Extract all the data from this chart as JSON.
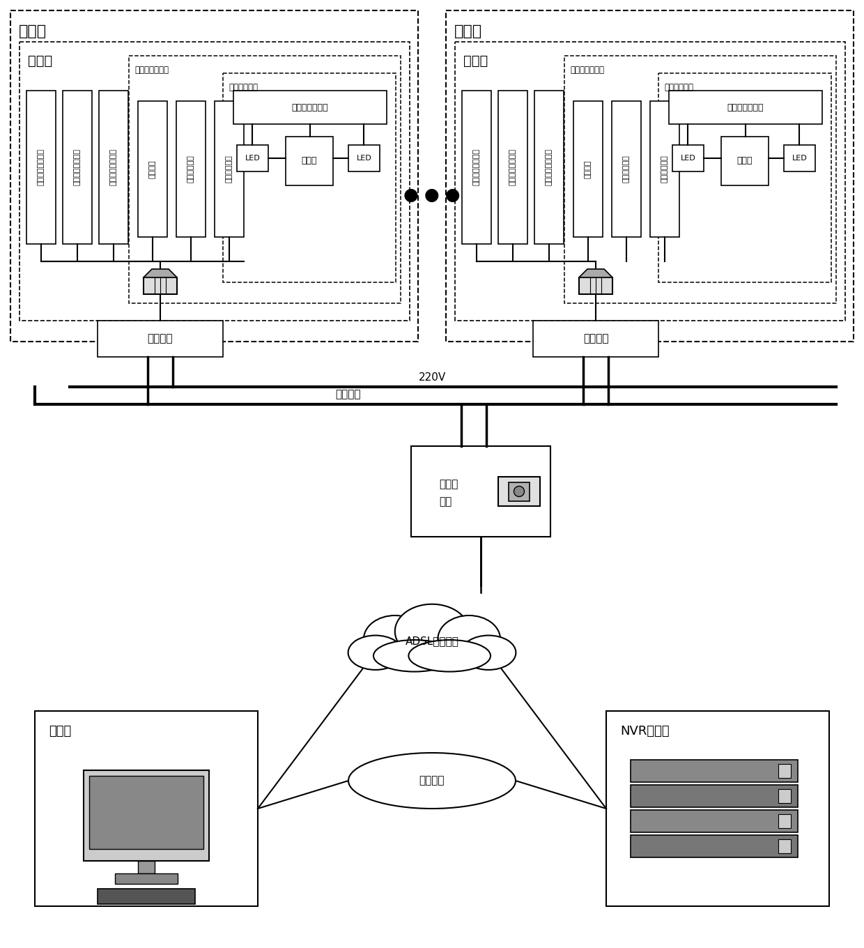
{
  "bg_color": "#ffffff",
  "left_machine_title": "转辙机",
  "right_machine_title": "转辙机",
  "left_ikm_title": "工控机",
  "right_ikm_title": "工控机",
  "left_image_ctrl": "图像处理控制器",
  "right_image_ctrl": "图像处理控制器",
  "left_image_collect": "图像采集单元",
  "right_image_collect": "图像采集单元",
  "sensor1": "转辙机振动传感器",
  "sensor2": "转辙机湿度传感器",
  "sensor3": "转辙机温度传感器",
  "power_unit": "供电单元",
  "video_unit": "视频存储单元",
  "image_unit": "图像分析单元",
  "gap_pos": "转辙机缺口位置",
  "camera": "摄像头",
  "led": "LED",
  "net_branch": "网络分机",
  "power_label": "220V",
  "carrier_label": "电力载波",
  "net_switch_line1": "网络转",
  "net_switch_line2": "换器",
  "adsl_cloud": "ADSL通信线路",
  "upper_pc": "上位机",
  "nvr_server": "NVR服务器",
  "private_net": "专用网络"
}
